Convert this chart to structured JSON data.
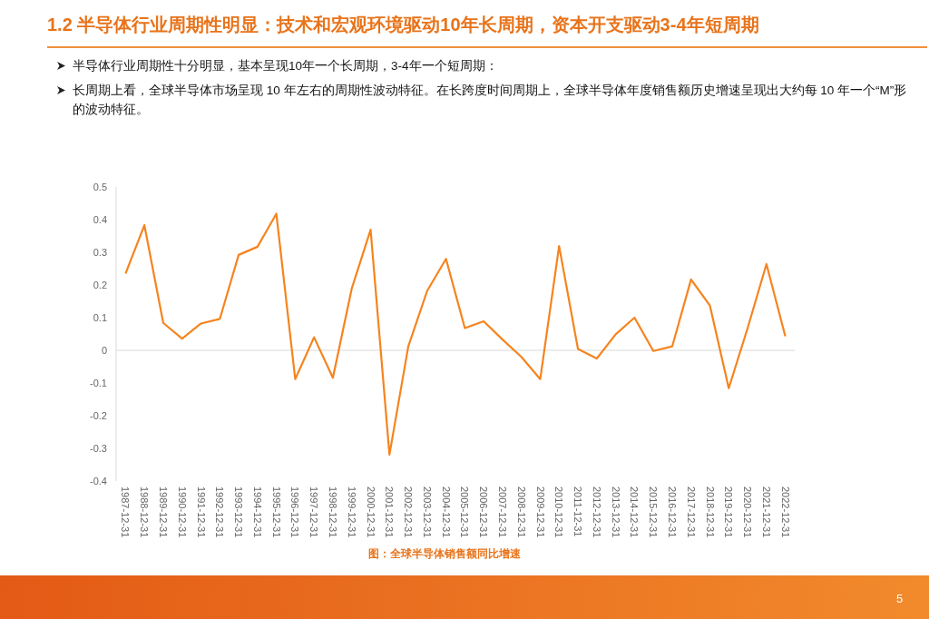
{
  "chart_data": {
    "type": "line",
    "title": "1.2 半导体行业周期性明显：技术和宏观环境驱动10年长周期，资本开支驱动3-4年短周期",
    "annotations": [
      "半导体行业周期性十分明显，基本呈现10年一个长周期，3-4年一个短周期：",
      "长周期上看，全球半导体市场呈现 10 年左右的周期性波动特征。在长跨度时间周期上，全球半导体年度销售额历史增速呈现出大约每 10 年一个“M”形的波动特征。",
      "图：全球半导体销售额同比增速",
      "5"
    ],
    "categories": [
      "1987-12-31",
      "1988-12-31",
      "1989-12-31",
      "1990-12-31",
      "1991-12-31",
      "1992-12-31",
      "1993-12-31",
      "1994-12-31",
      "1995-12-31",
      "1996-12-31",
      "1997-12-31",
      "1998-12-31",
      "1999-12-31",
      "2000-12-31",
      "2001-12-31",
      "2002-12-31",
      "2003-12-31",
      "2004-12-31",
      "2005-12-31",
      "2006-12-31",
      "2007-12-31",
      "2008-12-31",
      "2009-12-31",
      "2010-12-31",
      "2011-12-31",
      "2012-12-31",
      "2013-12-31",
      "2014-12-31",
      "2015-12-31",
      "2016-12-31",
      "2017-12-31",
      "2018-12-31",
      "2019-12-31",
      "2020-12-31",
      "2021-12-31",
      "2022-12-31"
    ],
    "series": [
      {
        "color": "#f5841f",
        "values": [
          0.235,
          0.383,
          0.084,
          0.036,
          0.082,
          0.096,
          0.292,
          0.317,
          0.418,
          -0.088,
          0.04,
          -0.084,
          0.189,
          0.369,
          -0.319,
          0.012,
          0.182,
          0.28,
          0.068,
          0.089,
          0.033,
          -0.02,
          -0.088,
          0.319,
          0.004,
          -0.025,
          0.049,
          0.1,
          -0.002,
          0.012,
          0.217,
          0.137,
          -0.116,
          0.068,
          0.264,
          0.043
        ]
      }
    ],
    "ylim": [
      -0.4,
      0.5
    ],
    "yticks": [
      -0.4,
      -0.3,
      -0.2,
      -0.1,
      0,
      0.1,
      0.2,
      0.3,
      0.4,
      0.5
    ],
    "ref_lines": [
      {
        "axis": "y",
        "value": 0,
        "color": "#d9d9d9"
      }
    ]
  }
}
